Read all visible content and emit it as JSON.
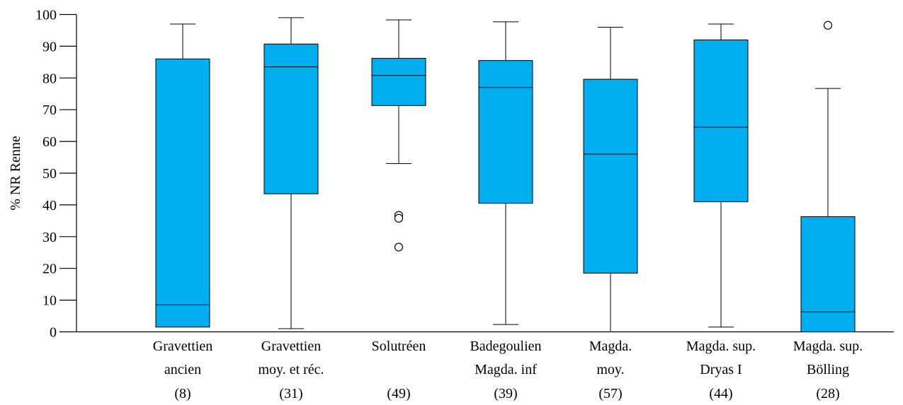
{
  "chart_data": {
    "type": "boxplot",
    "title": "",
    "xlabel": "",
    "ylabel": "% NR Renne",
    "ylim": [
      0,
      100
    ],
    "yticks": [
      0,
      10,
      20,
      30,
      40,
      50,
      60,
      70,
      80,
      90,
      100
    ],
    "grid": false,
    "box_color": "#00AEEF",
    "categories": [
      {
        "lines": [
          "Gravettien",
          "ancien",
          "(8)"
        ],
        "n": 8
      },
      {
        "lines": [
          "Gravettien",
          "moy. et réc.",
          "(31)"
        ],
        "n": 31
      },
      {
        "lines": [
          "Solutréen",
          "",
          "(49)"
        ],
        "n": 49
      },
      {
        "lines": [
          "Badegoulien",
          "Magda. inf",
          "(39)"
        ],
        "n": 39
      },
      {
        "lines": [
          "Magda.",
          "moy.",
          "(57)"
        ],
        "n": 57
      },
      {
        "lines": [
          "Magda. sup.",
          "Dryas I",
          "(44)"
        ],
        "n": 44
      },
      {
        "lines": [
          "Magda. sup.",
          "Bölling",
          "(28)"
        ],
        "n": 28
      }
    ],
    "boxes": [
      {
        "whisker_low": 1.5,
        "q1": 1.5,
        "median": 8.5,
        "q3": 86,
        "whisker_high": 97,
        "outliers": []
      },
      {
        "whisker_low": 1,
        "q1": 43.5,
        "median": 83.5,
        "q3": 90.7,
        "whisker_high": 99,
        "outliers": []
      },
      {
        "whisker_low": 53,
        "q1": 71.3,
        "median": 80.8,
        "q3": 86.2,
        "whisker_high": 98.3,
        "outliers": [
          36.7,
          35.8,
          26.7
        ]
      },
      {
        "whisker_low": 2.3,
        "q1": 40.5,
        "median": 77,
        "q3": 85.5,
        "whisker_high": 97.7,
        "outliers": []
      },
      {
        "whisker_low": 0,
        "q1": 18.5,
        "median": 56,
        "q3": 79.6,
        "whisker_high": 96,
        "outliers": []
      },
      {
        "whisker_low": 1.5,
        "q1": 41,
        "median": 64.5,
        "q3": 92,
        "whisker_high": 97,
        "outliers": []
      },
      {
        "whisker_low": 0,
        "q1": 0,
        "median": 6.3,
        "q3": 36.3,
        "whisker_high": 76.7,
        "outliers": [
          96.6
        ]
      }
    ]
  }
}
